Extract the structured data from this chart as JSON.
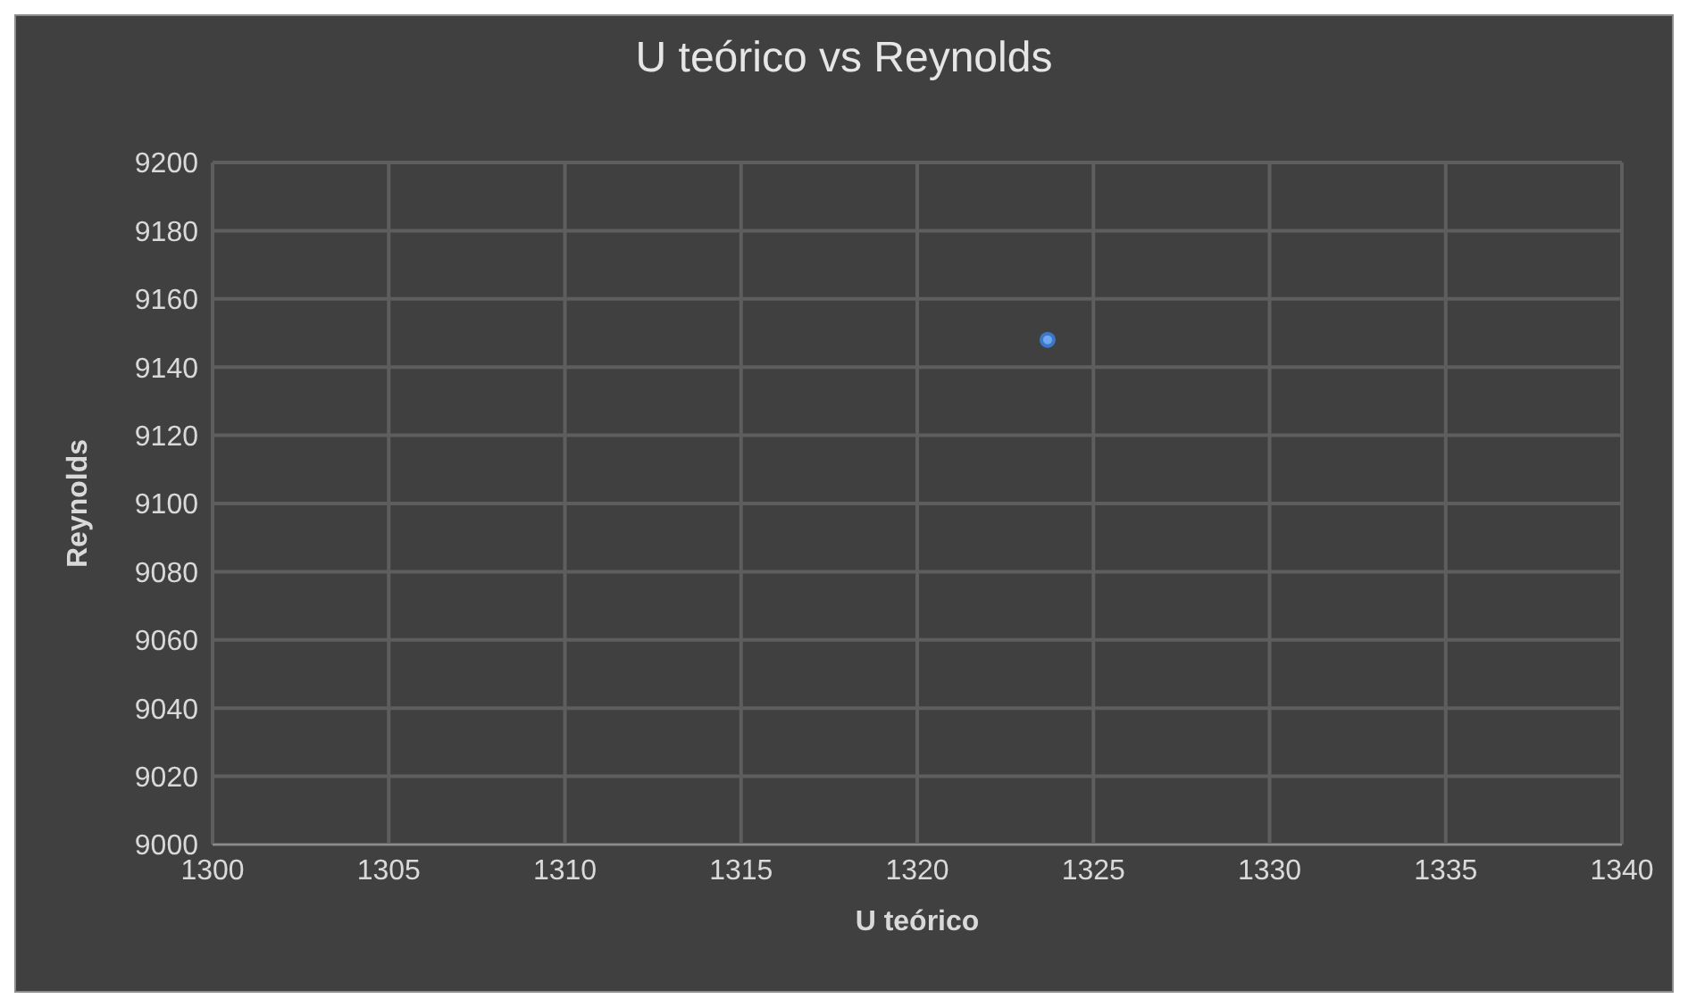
{
  "chart_data": {
    "type": "scatter",
    "title": "U teórico vs Reynolds",
    "xlabel": "U teórico",
    "ylabel": "Reynolds",
    "x": [
      1323.7
    ],
    "series": [
      {
        "color": "#6fa8f0",
        "values": [
          9148
        ]
      }
    ],
    "xlim": [
      1300,
      1340
    ],
    "xticks": [
      1300,
      1305,
      1310,
      1315,
      1320,
      1325,
      1330,
      1335,
      1340
    ],
    "ylim": [
      9000,
      9200
    ],
    "yticks": [
      9000,
      9020,
      9040,
      9060,
      9080,
      9100,
      9120,
      9140,
      9160,
      9180,
      9200
    ],
    "grid": true,
    "marker": "circle",
    "legend": false
  }
}
